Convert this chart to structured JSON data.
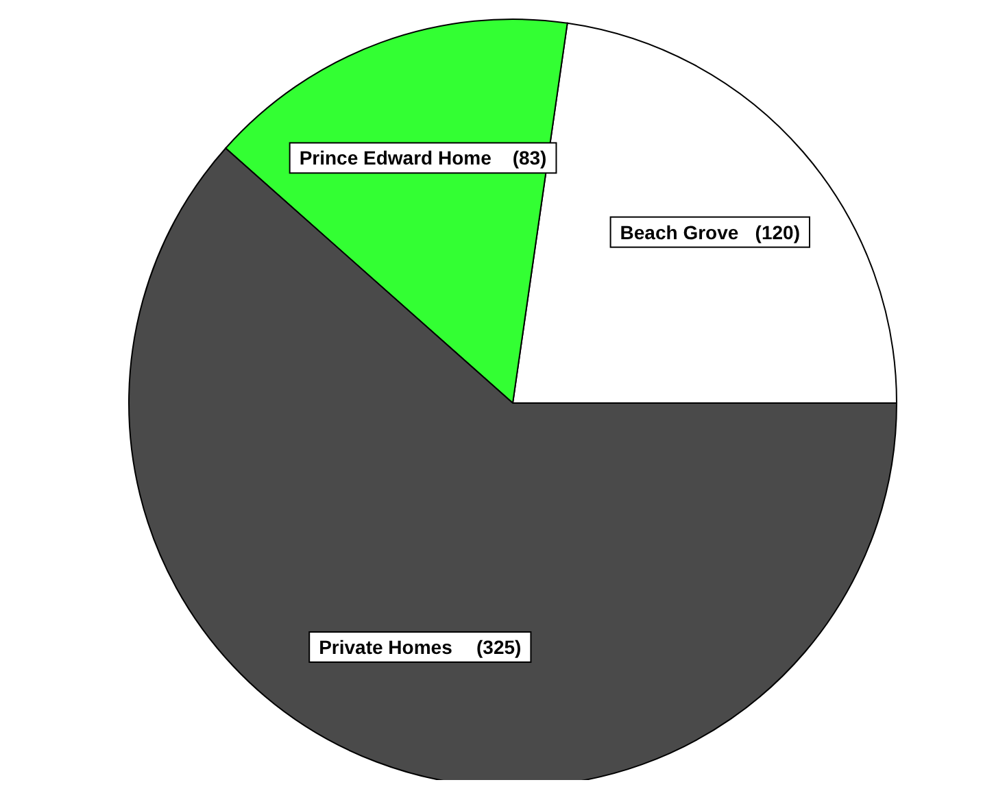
{
  "chart_data": {
    "type": "pie",
    "categories": [
      "Beach Grove",
      "Prince Edward Home",
      "Private Homes"
    ],
    "values": [
      120,
      83,
      325
    ],
    "value_labels": [
      "(120)",
      "(83)",
      "(325)"
    ],
    "colors": [
      "#ffffff",
      "#33ff33",
      "#4a4a4a"
    ]
  }
}
